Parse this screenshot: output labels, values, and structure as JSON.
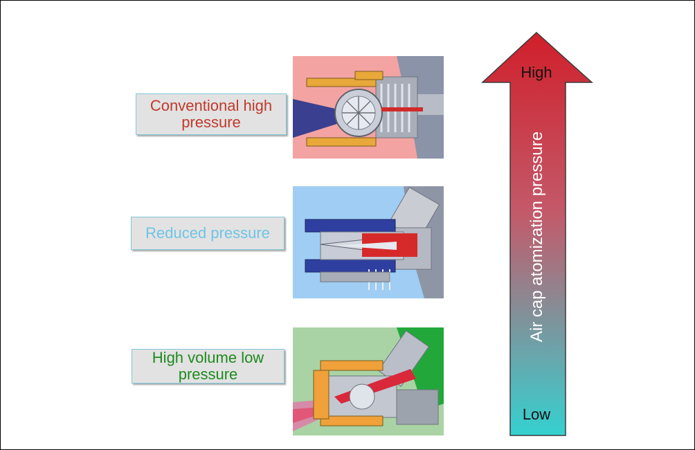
{
  "labels": {
    "conventional": {
      "line1": "Conventional high",
      "line2": "pressure",
      "color": "#c0392b"
    },
    "reduced": {
      "text": "Reduced pressure",
      "color": "#6fc4e6"
    },
    "hvlp": {
      "line1": "High volume low",
      "line2": "pressure",
      "color": "#1e8a1e"
    }
  },
  "panels": {
    "conventional": {
      "background": "#f4a3a3",
      "icon": "conventional-spray-gun-cutaway"
    },
    "reduced": {
      "background": "#9fcdf3",
      "icon": "reduced-pressure-spray-gun-cutaway"
    },
    "hvlp": {
      "background": "#a9d3a4",
      "icon": "hvlp-spray-gun-cutaway"
    }
  },
  "arrow": {
    "axis_label": "Air cap atomization pressure",
    "top_label": "High",
    "bottom_label": "Low",
    "color_top": "#d01f2a",
    "color_bottom": "#35d1d1"
  }
}
